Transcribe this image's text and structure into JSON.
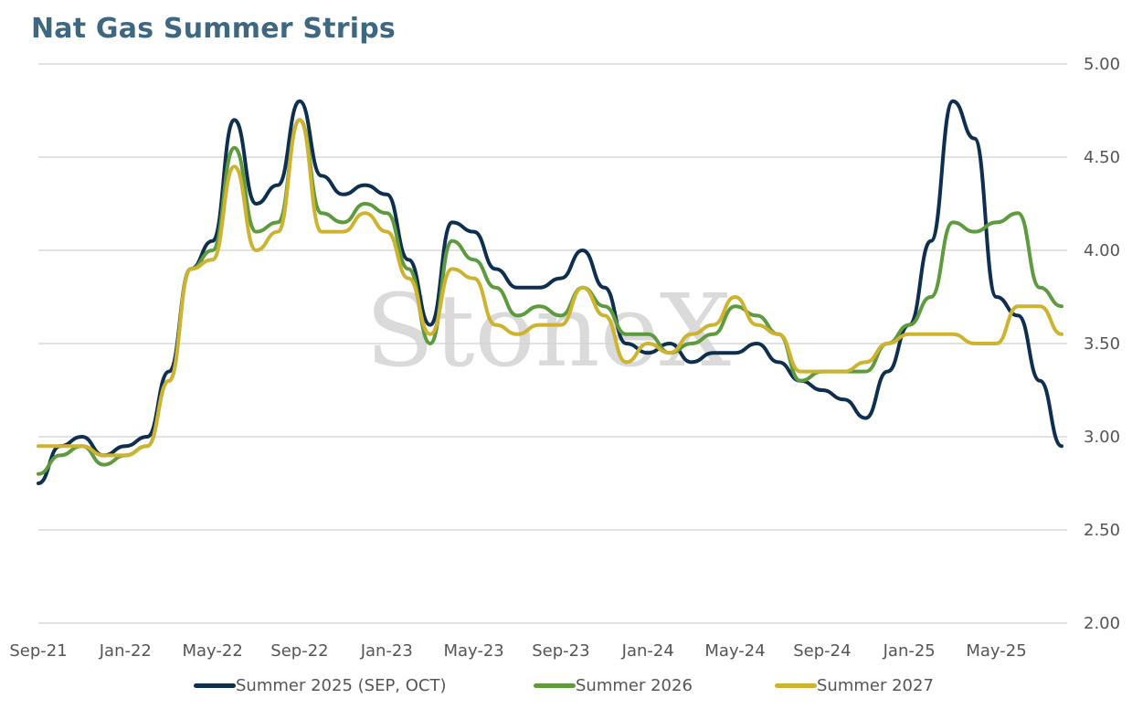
{
  "chart_data": {
    "type": "line",
    "title": "Nat Gas Summer Strips",
    "xlabel": "",
    "ylabel": "",
    "ylim": [
      2.0,
      5.0
    ],
    "y_ticks": [
      "2.00",
      "2.50",
      "3.00",
      "3.50",
      "4.00",
      "4.50",
      "5.00"
    ],
    "x_ticks": [
      "Sep-21",
      "Jan-22",
      "May-22",
      "Sep-22",
      "Jan-23",
      "May-23",
      "Sep-23",
      "Jan-24",
      "May-24",
      "Sep-24",
      "Jan-25",
      "May-25"
    ],
    "grid": "horizontal",
    "y_axis_side": "right",
    "legend_position": "bottom",
    "watermark": "StoneX",
    "x": [
      "Sep-21",
      "Oct-21",
      "Nov-21",
      "Dec-21",
      "Jan-22",
      "Feb-22",
      "Mar-22",
      "Apr-22",
      "May-22",
      "Jun-22",
      "Jul-22",
      "Aug-22",
      "Sep-22",
      "Oct-22",
      "Nov-22",
      "Dec-22",
      "Jan-23",
      "Feb-23",
      "Mar-23",
      "Apr-23",
      "May-23",
      "Jun-23",
      "Jul-23",
      "Aug-23",
      "Sep-23",
      "Oct-23",
      "Nov-23",
      "Dec-23",
      "Jan-24",
      "Feb-24",
      "Mar-24",
      "Apr-24",
      "May-24",
      "Jun-24",
      "Jul-24",
      "Aug-24",
      "Sep-24",
      "Oct-24",
      "Nov-24",
      "Dec-24",
      "Jan-25",
      "Feb-25",
      "Mar-25",
      "Apr-25",
      "May-25",
      "Jun-25",
      "Jul-25",
      "Aug-25"
    ],
    "series": [
      {
        "name": "Summer 2025 (SEP, OCT)",
        "color": "#0e2f50",
        "values": [
          2.75,
          2.95,
          3.0,
          2.9,
          2.95,
          3.0,
          3.35,
          3.9,
          4.05,
          4.7,
          4.25,
          4.35,
          4.8,
          4.4,
          4.3,
          4.35,
          4.3,
          3.95,
          3.6,
          4.15,
          4.1,
          3.9,
          3.8,
          3.8,
          3.85,
          4.0,
          3.8,
          3.5,
          3.45,
          3.5,
          3.4,
          3.45,
          3.45,
          3.5,
          3.4,
          3.3,
          3.25,
          3.2,
          3.1,
          3.35,
          3.6,
          4.05,
          4.8,
          4.6,
          3.75,
          3.65,
          3.3,
          2.95
        ]
      },
      {
        "name": "Summer 2026",
        "color": "#5d9b3e",
        "values": [
          2.8,
          2.9,
          2.95,
          2.85,
          2.9,
          2.95,
          3.3,
          3.9,
          4.0,
          4.55,
          4.1,
          4.15,
          4.7,
          4.2,
          4.15,
          4.25,
          4.2,
          3.9,
          3.5,
          4.05,
          3.95,
          3.8,
          3.65,
          3.7,
          3.65,
          3.8,
          3.7,
          3.55,
          3.55,
          3.45,
          3.5,
          3.55,
          3.7,
          3.65,
          3.55,
          3.3,
          3.35,
          3.35,
          3.35,
          3.5,
          3.6,
          3.75,
          4.15,
          4.1,
          4.15,
          4.2,
          3.8,
          3.7
        ]
      },
      {
        "name": "Summer 2027",
        "color": "#cdb330",
        "values": [
          2.95,
          2.95,
          2.95,
          2.9,
          2.9,
          2.95,
          3.3,
          3.9,
          3.95,
          4.45,
          4.0,
          4.1,
          4.7,
          4.1,
          4.1,
          4.2,
          4.1,
          3.85,
          3.55,
          3.9,
          3.85,
          3.6,
          3.55,
          3.6,
          3.6,
          3.8,
          3.65,
          3.4,
          3.5,
          3.45,
          3.55,
          3.6,
          3.75,
          3.6,
          3.55,
          3.35,
          3.35,
          3.35,
          3.4,
          3.5,
          3.55,
          3.55,
          3.55,
          3.5,
          3.5,
          3.7,
          3.7,
          3.55
        ]
      }
    ]
  }
}
